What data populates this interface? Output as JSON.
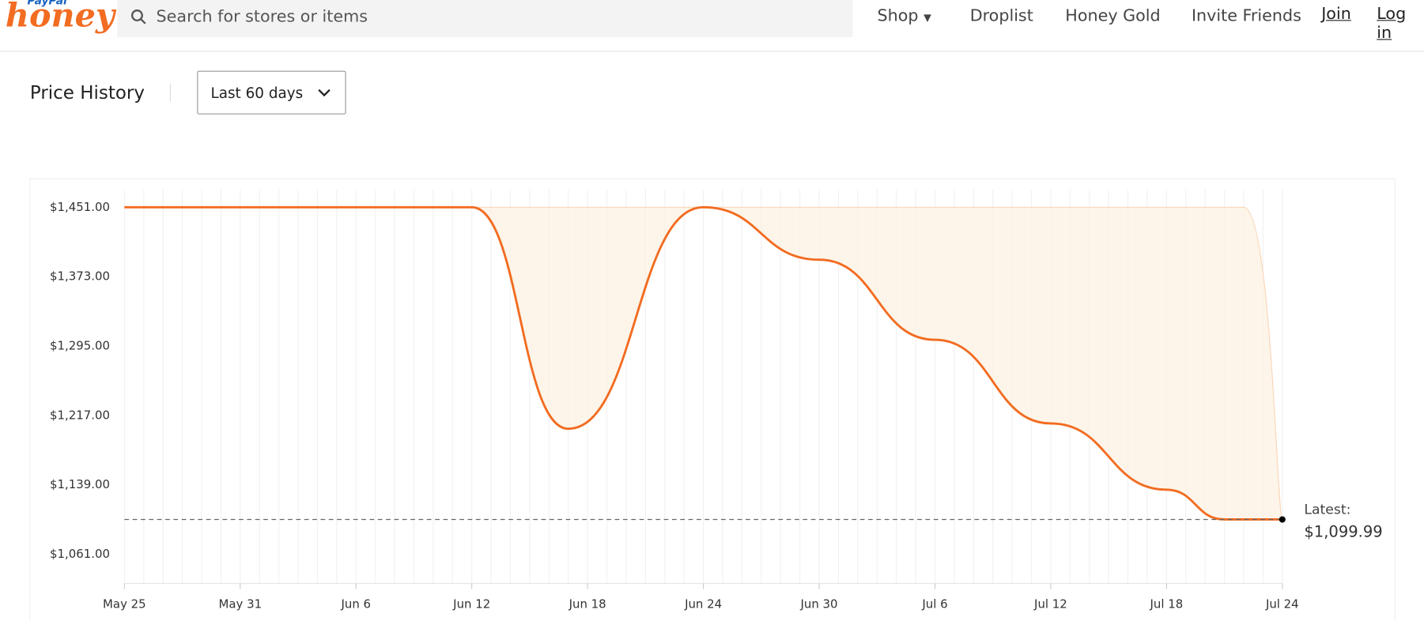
{
  "header": {
    "logo_top": "PayPal",
    "logo": "honey",
    "search_placeholder": "Search for stores or items",
    "nav": [
      "Shop",
      "Droplist",
      "Honey Gold",
      "Invite Friends"
    ],
    "join": "Join",
    "login": "Log in"
  },
  "section": {
    "title": "Price History",
    "range": "Last 60 days"
  },
  "chart_data": {
    "type": "line",
    "xlim": [
      0,
      60
    ],
    "xticks": [
      {
        "value": 0,
        "label": "May 25"
      },
      {
        "value": 6,
        "label": "May 31"
      },
      {
        "value": 12,
        "label": "Jun 6"
      },
      {
        "value": 18,
        "label": "Jun 12"
      },
      {
        "value": 24,
        "label": "Jun 18"
      },
      {
        "value": 30,
        "label": "Jun 24"
      },
      {
        "value": 36,
        "label": "Jun 30"
      },
      {
        "value": 42,
        "label": "Jul 6"
      },
      {
        "value": 48,
        "label": "Jul 12"
      },
      {
        "value": 54,
        "label": "Jul 18"
      },
      {
        "value": 60,
        "label": "Jul 24"
      }
    ],
    "ylim": [
      1028,
      1483
    ],
    "yticks": [
      {
        "value": 1451,
        "label": "$1,451.00"
      },
      {
        "value": 1373,
        "label": "$1,373.00"
      },
      {
        "value": 1295,
        "label": "$1,295.00"
      },
      {
        "value": 1217,
        "label": "$1,217.00"
      },
      {
        "value": 1139,
        "label": "$1,139.00"
      },
      {
        "value": 1061,
        "label": "$1,061.00"
      }
    ],
    "series": [
      {
        "color": "#f26c21",
        "x": [
          0,
          18,
          23,
          30,
          36,
          42,
          48,
          54,
          57,
          60
        ],
        "values": [
          1451,
          1451,
          1202,
          1451,
          1392,
          1302,
          1208,
          1133.5,
          1099.99,
          1099.99
        ]
      }
    ],
    "latest": {
      "label": "Latest:",
      "value": 1099.99,
      "value_label": "$1,099.99"
    }
  }
}
